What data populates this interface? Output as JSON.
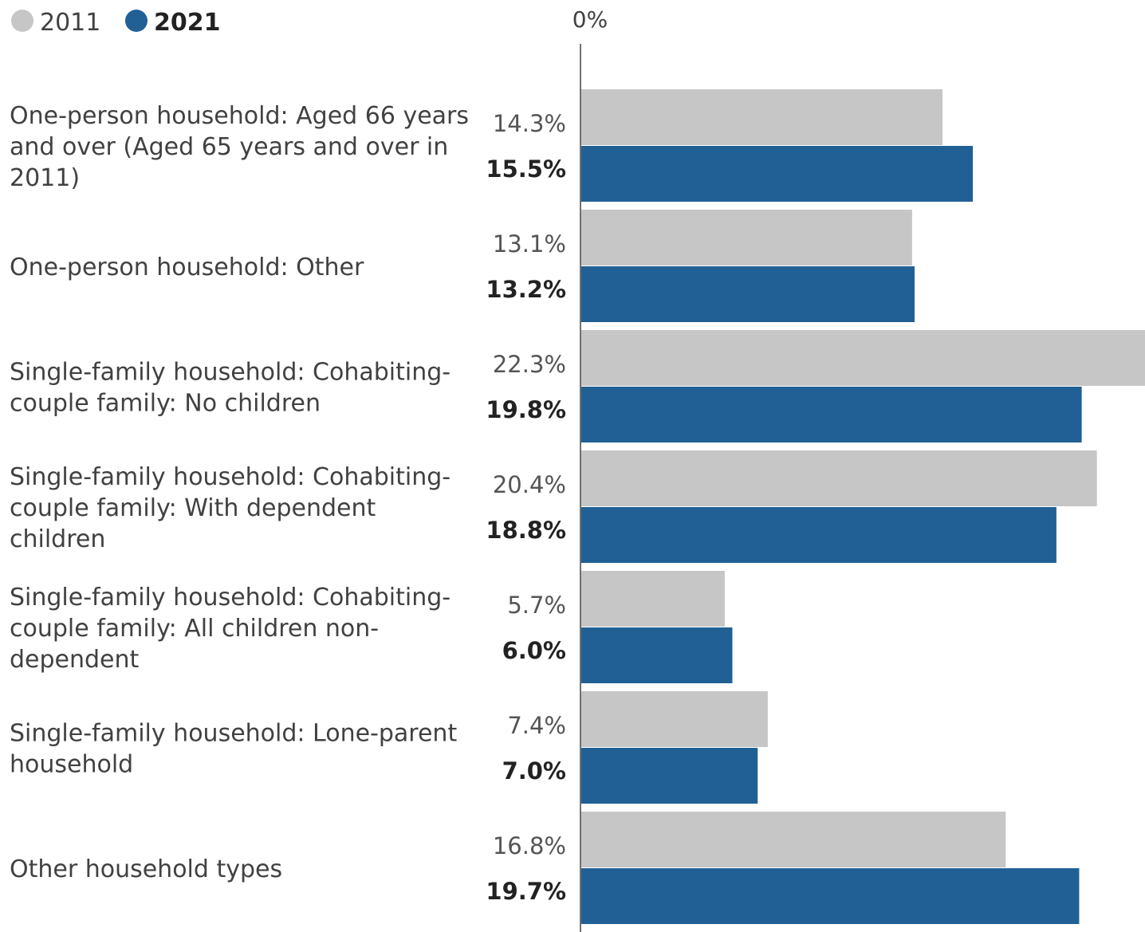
{
  "chart_data": {
    "type": "bar",
    "orientation": "horizontal",
    "title": "",
    "xlabel": "",
    "ylabel": "",
    "axis_tick_label": "0%",
    "xlim": [
      0,
      22.3
    ],
    "grid": false,
    "legend_position": "top-left",
    "categories": [
      [
        "One-person household: Aged 66 years",
        "and over (Aged 65 years and over in",
        "2011)"
      ],
      [
        "One-person household: Other"
      ],
      [
        "Single-family household: Cohabiting-",
        "couple family: No children"
      ],
      [
        "Single-family household: Cohabiting-",
        "couple family: With dependent",
        "children"
      ],
      [
        "Single-family household: Cohabiting-",
        "couple family: All children non-",
        "dependent"
      ],
      [
        "Single-family household: Lone-parent",
        "household"
      ],
      [
        "Other household types"
      ]
    ],
    "series": [
      {
        "name": "2011",
        "color": "#c6c6c6",
        "values": [
          14.3,
          13.1,
          22.3,
          20.4,
          5.7,
          7.4,
          16.8
        ],
        "labels": [
          "14.3%",
          "13.1%",
          "22.3%",
          "20.4%",
          "5.7%",
          "7.4%",
          "16.8%"
        ]
      },
      {
        "name": "2021",
        "color": "#206095",
        "values": [
          15.5,
          13.2,
          19.8,
          18.8,
          6.0,
          7.0,
          19.7
        ],
        "labels": [
          "15.5%",
          "13.2%",
          "19.8%",
          "18.8%",
          "6.0%",
          "7.0%",
          "19.7%"
        ]
      }
    ]
  }
}
